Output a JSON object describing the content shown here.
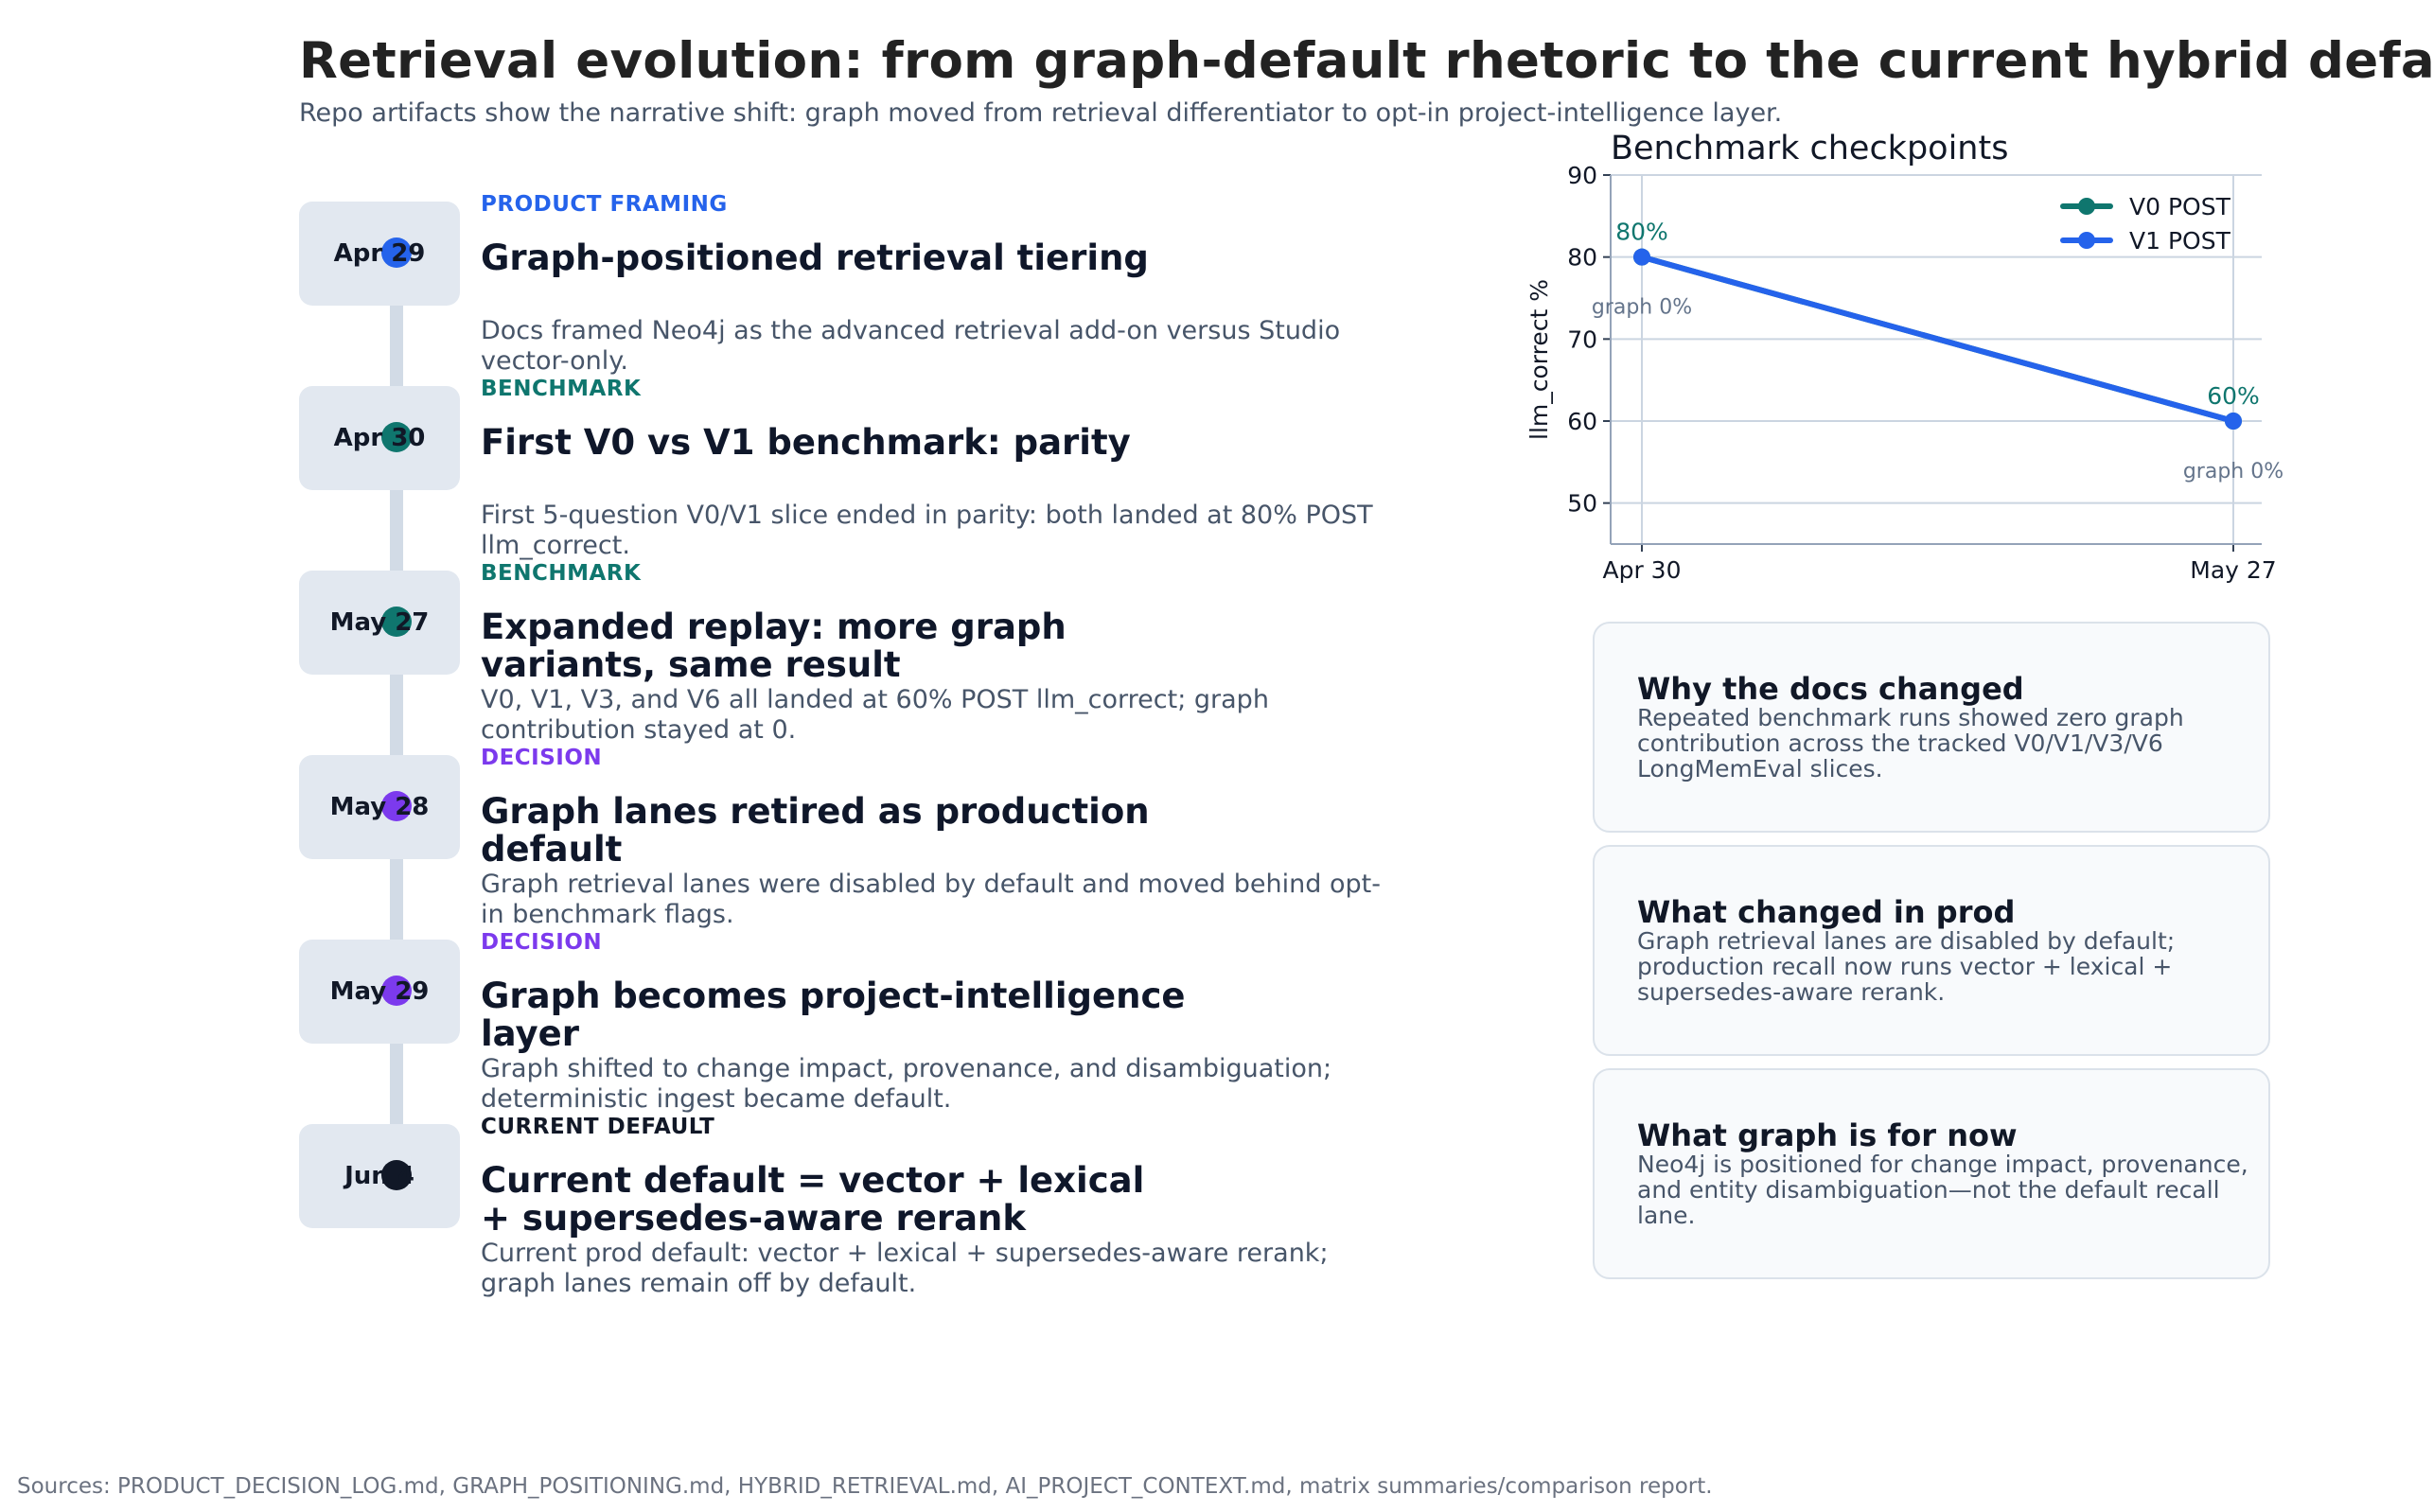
{
  "title": "Retrieval evolution: from graph-default rhetoric to the current hybrid default",
  "subtitle": "Repo artifacts show the narrative shift: graph moved from retrieval differentiator to opt-in project-intelligence layer.",
  "colors": {
    "product_framing": "#2563eb",
    "benchmark": "#0f766e",
    "decision": "#7c3aed",
    "current_default": "#111827"
  },
  "events": [
    {
      "date": "Apr 29",
      "category": "PRODUCT FRAMING",
      "title": "Graph-positioned retrieval tiering",
      "description": "Docs framed Neo4j as the advanced retrieval add-on versus Studio vector-only."
    },
    {
      "date": "Apr 30",
      "category": "BENCHMARK",
      "title": "First V0 vs V1 benchmark: parity",
      "description": "First 5-question V0/V1 slice ended in parity: both landed at 80% POST llm_correct."
    },
    {
      "date": "May 27",
      "category": "BENCHMARK",
      "title": "Expanded replay: more graph variants, same result",
      "description": "V0, V1, V3, and V6 all landed at 60% POST llm_correct; graph contribution stayed at 0."
    },
    {
      "date": "May 28",
      "category": "DECISION",
      "title": "Graph lanes retired as production default",
      "description": "Graph retrieval lanes were disabled by default and moved behind opt-in benchmark flags."
    },
    {
      "date": "May 29",
      "category": "DECISION",
      "title": "Graph becomes project-intelligence layer",
      "description": "Graph shifted to change impact, provenance, and disambiguation; deterministic ingest became default."
    },
    {
      "date": "Jun 4",
      "category": "CURRENT DEFAULT",
      "title": "Current default = vector + lexical + supersedes-aware rerank",
      "description": "Current prod default: vector + lexical + supersedes-aware rerank; graph lanes remain off by default."
    }
  ],
  "chart_data": {
    "type": "line",
    "title": "Benchmark checkpoints",
    "xlabel": "",
    "ylabel": "llm_correct %",
    "categories": [
      "Apr 30",
      "May 27"
    ],
    "ylim": [
      45,
      90
    ],
    "yticks": [
      50,
      60,
      70,
      80,
      90
    ],
    "grid": true,
    "legend": "top-right",
    "series": [
      {
        "name": "V0 POST",
        "values": [
          80,
          60
        ],
        "color": "#0f766e"
      },
      {
        "name": "V1 POST",
        "values": [
          80,
          60
        ],
        "color": "#2563eb"
      }
    ],
    "annotations": [
      {
        "label": "80%",
        "category": "Apr 30",
        "value": 80
      },
      {
        "label": "graph 0%",
        "category": "Apr 30",
        "value": 80
      },
      {
        "label": "60%",
        "category": "May 27",
        "value": 60
      },
      {
        "label": "graph 0%",
        "category": "May 27",
        "value": 60
      }
    ]
  },
  "cards": [
    {
      "title": "Why the docs changed",
      "body": "Repeated benchmark runs showed zero graph contribution across the tracked V0/V1/V3/V6 LongMemEval slices."
    },
    {
      "title": "What changed in prod",
      "body": "Graph retrieval lanes are disabled by default; production recall now runs vector + lexical + supersedes-aware rerank."
    },
    {
      "title": "What graph is for now",
      "body": "Neo4j is positioned for change impact, provenance, and entity disambiguation—not the default recall lane."
    }
  ],
  "footer": "Sources: PRODUCT_DECISION_LOG.md, GRAPH_POSITIONING.md, HYBRID_RETRIEVAL.md, AI_PROJECT_CONTEXT.md, matrix summaries/comparison report."
}
